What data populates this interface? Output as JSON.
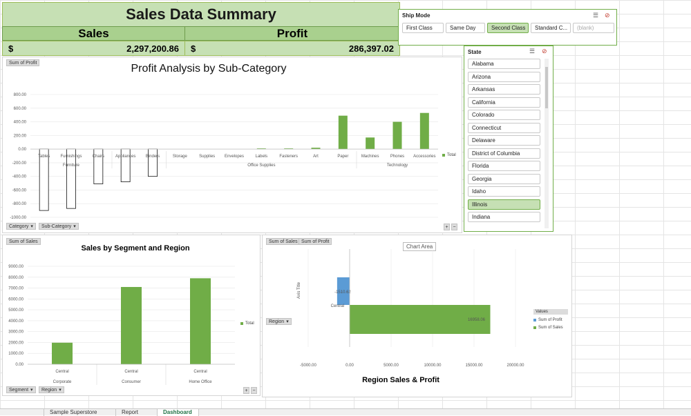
{
  "summary": {
    "title": "Sales Data Summary",
    "sales_label": "Sales",
    "profit_label": "Profit",
    "currency": "$",
    "sales_value": "2,297,200.86",
    "profit_value": "286,397.02"
  },
  "profit_chart": {
    "field_button": "Sum of Profit",
    "title": "Profit Analysis by Sub-Category",
    "legend": "Total",
    "category_button": "Category",
    "subcategory_button": "Sub-Category",
    "y_ticks": [
      "800.00",
      "600.00",
      "400.00",
      "200.00",
      "0.00",
      "-200.00",
      "-400.00",
      "-600.00",
      "-800.00",
      "-1000.00"
    ]
  },
  "segment_chart": {
    "field_button": "Sum of Sales",
    "title": "Sales by Segment and Region",
    "legend": "Total",
    "segment_button": "Segment",
    "region_button": "Region",
    "y_ticks": [
      "9000.00",
      "8000.00",
      "7000.00",
      "6000.00",
      "5000.00",
      "4000.00",
      "3000.00",
      "2000.00",
      "1000.00",
      "0.00"
    ]
  },
  "region_chart": {
    "field_button_sales": "Sum of Sales",
    "field_button_profit": "Sum of Profit",
    "tooltip": "Chart Area",
    "axis_title": "Axis Title",
    "region_button": "Region",
    "title": "Region Sales & Profit",
    "legend_title": "Values",
    "legend_profit": "Sum of Profit",
    "legend_sales": "Sum of Sales",
    "x_ticks": [
      "-5000.00",
      "0.00",
      "5000.00",
      "10000.00",
      "15000.00",
      "20000.00"
    ]
  },
  "ship_mode": {
    "title": "Ship Mode",
    "items": [
      "First Class",
      "Same Day",
      "Second Class",
      "Standard C...",
      "(blank)"
    ],
    "selected": "Second Class"
  },
  "state": {
    "title": "State",
    "items": [
      "Alabama",
      "Arizona",
      "Arkansas",
      "California",
      "Colorado",
      "Connecticut",
      "Delaware",
      "District of Columbia",
      "Florida",
      "Georgia",
      "Idaho",
      "Illinois",
      "Indiana"
    ],
    "selected": "Illinois"
  },
  "tabs": [
    "",
    "Sample Superstore",
    "Report",
    "Dashboard"
  ],
  "colors": {
    "green": "#70ad47",
    "blue": "#5b9bd5",
    "header_green": "#c6e0b4",
    "header_dark": "#a9d08e"
  },
  "chart_data": [
    {
      "type": "bar",
      "title": "Profit Analysis by Sub-Category",
      "categories": [
        "Tables",
        "Furnishings",
        "Chairs",
        "Appliances",
        "Binders",
        "Storage",
        "Supplies",
        "Envelopes",
        "Labels",
        "Fasteners",
        "Art",
        "Paper",
        "Machines",
        "Phones",
        "Accessories"
      ],
      "groups": [
        {
          "name": "Furniture",
          "count": 3
        },
        {
          "name": "",
          "count": 2
        },
        {
          "name": "Office Supplies",
          "count": 7
        },
        {
          "name": "Technology",
          "count": 3
        }
      ],
      "series": [
        {
          "name": "Total",
          "values": [
            -900,
            -870,
            -510,
            -480,
            -400,
            0,
            0,
            0,
            10,
            10,
            20,
            490,
            170,
            400,
            530
          ]
        }
      ],
      "ylim": [
        -1000,
        800
      ]
    },
    {
      "type": "bar",
      "title": "Sales by Segment and Region",
      "categories": [
        "Central",
        "Central",
        "Central"
      ],
      "groups": [
        "Corporate",
        "Consumer",
        "Home Office"
      ],
      "series": [
        {
          "name": "Total",
          "values": [
            1980,
            7100,
            7900
          ]
        }
      ],
      "ylim": [
        0,
        9000
      ]
    },
    {
      "type": "bar",
      "orientation": "horizontal",
      "title": "Region Sales & Profit",
      "categories": [
        "Central"
      ],
      "series": [
        {
          "name": "Sum of Profit",
          "values": [
            -1510.62
          ],
          "label": "-1510.62"
        },
        {
          "name": "Sum of Sales",
          "values": [
            16958.06
          ],
          "label": "16958.06"
        }
      ],
      "xlim": [
        -5000,
        20000
      ]
    }
  ]
}
